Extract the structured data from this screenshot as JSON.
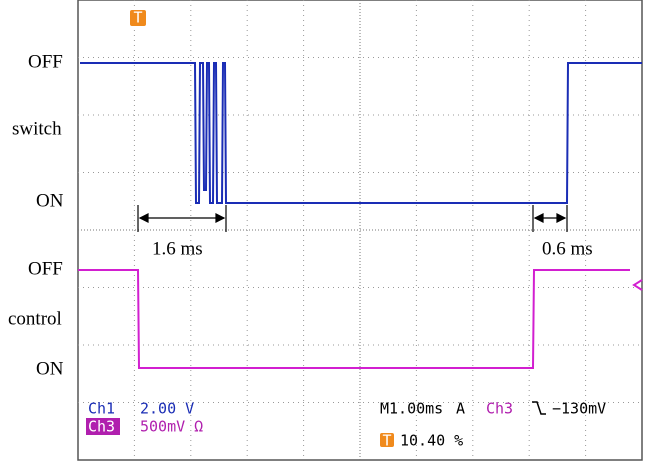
{
  "labels": {
    "top_off": "OFF",
    "top_name": "switch",
    "top_on": "ON",
    "bottom_off": "OFF",
    "bottom_name": "control",
    "bottom_on": "ON"
  },
  "annotations": {
    "delay_on": "1.6 ms",
    "delay_off": "0.6 ms"
  },
  "readout": {
    "ch1": "Ch1",
    "ch1_scale": "2.00 V",
    "ch3": "Ch3",
    "ch3_scale": "500mV Ω",
    "timebase": "M1.00ms",
    "mode": "A",
    "trigger_source": "Ch3",
    "trigger_level": "−130mV",
    "trigger_marker": "T",
    "trigger_position": "10.40 %"
  }
}
